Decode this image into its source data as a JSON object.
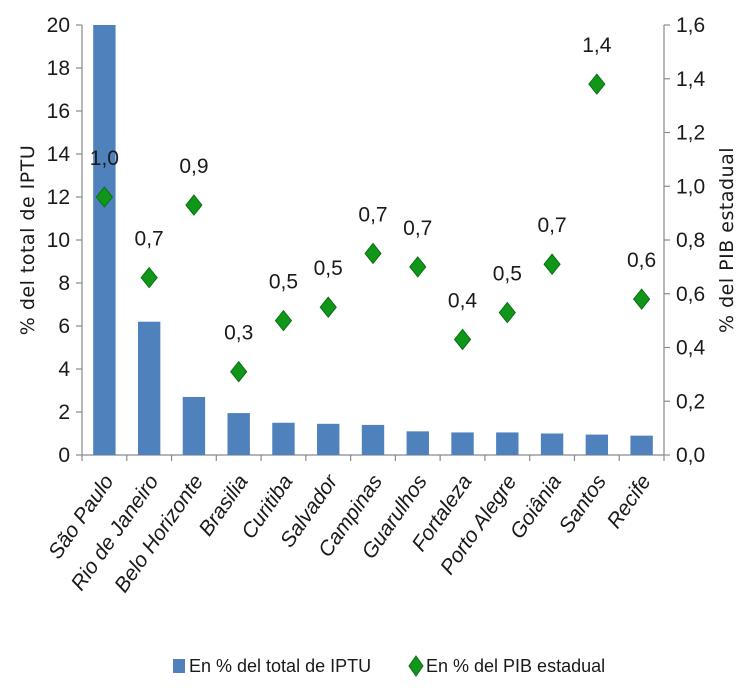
{
  "chart_data": {
    "type": "bar",
    "categories": [
      "São Paulo",
      "Rio de Janeiro",
      "Belo Horizonte",
      "Brasilia",
      "Curitiba",
      "Salvador",
      "Campinas",
      "Guarulhos",
      "Fortaleza",
      "Porto Alegre",
      "Goiânia",
      "Santos",
      "Recife"
    ],
    "series": [
      {
        "name": "En % del total de IPTU",
        "kind": "bar",
        "axis": "left",
        "color": "#4f81bd",
        "values": [
          20.0,
          6.2,
          2.7,
          1.95,
          1.5,
          1.45,
          1.4,
          1.1,
          1.05,
          1.05,
          1.0,
          0.95,
          0.9
        ]
      },
      {
        "name": "En % del PIB estadual",
        "kind": "scatter",
        "marker": "diamond",
        "axis": "right",
        "color": "#109618",
        "values": [
          0.96,
          0.66,
          0.93,
          0.31,
          0.5,
          0.55,
          0.75,
          0.7,
          0.43,
          0.53,
          0.71,
          1.38,
          0.58
        ],
        "data_labels": [
          "1,0",
          "0,7",
          "0,9",
          "0,3",
          "0,5",
          "0,5",
          "0,7",
          "0,7",
          "0,4",
          "0,5",
          "0,7",
          "1,4",
          "0,6"
        ]
      }
    ],
    "ylabel": "% del total de IPTU",
    "y2label": "% del PIB estadual",
    "ylim": [
      0,
      20
    ],
    "y2lim": [
      0,
      1.6
    ],
    "yticks": [
      0,
      2,
      4,
      6,
      8,
      10,
      12,
      14,
      16,
      18,
      20
    ],
    "y2ticks": [
      "0,0",
      "0,2",
      "0,4",
      "0,6",
      "0,8",
      "1,0",
      "1,2",
      "1,4",
      "1,6"
    ],
    "grid": false,
    "legend_position": "bottom"
  }
}
